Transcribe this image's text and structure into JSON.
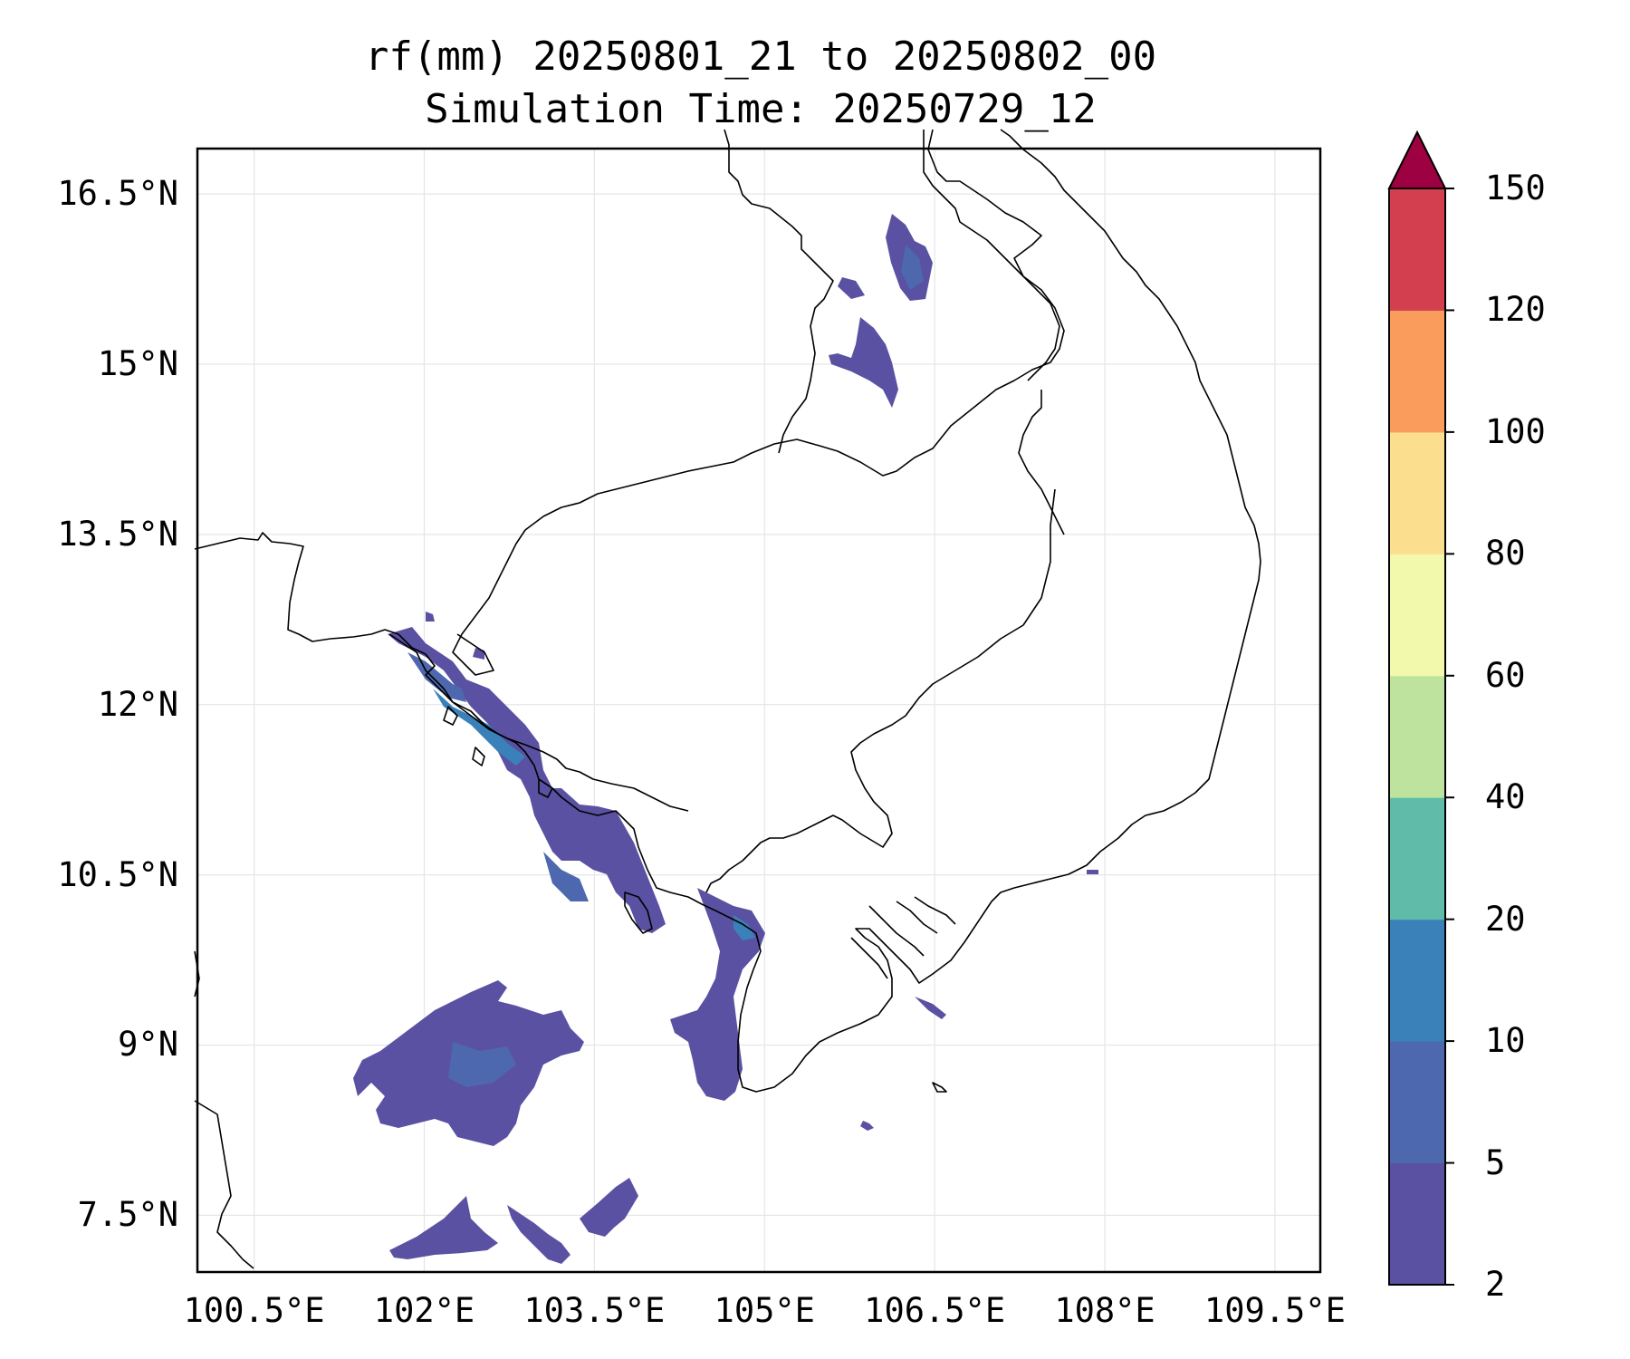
{
  "title": {
    "line1": "rf(mm) 20250801_21 to 20250802_00",
    "line2": "Simulation Time: 20250729_12"
  },
  "map": {
    "lon_range": [
      100.0,
      109.9
    ],
    "lat_range": [
      7.0,
      16.9
    ],
    "lat_ticks": [
      {
        "value": 16.5,
        "label": "16.5°N"
      },
      {
        "value": 15.0,
        "label": "15°N"
      },
      {
        "value": 13.5,
        "label": "13.5°N"
      },
      {
        "value": 12.0,
        "label": "12°N"
      },
      {
        "value": 10.5,
        "label": "10.5°N"
      },
      {
        "value": 9.0,
        "label": "9°N"
      },
      {
        "value": 7.5,
        "label": "7.5°N"
      }
    ],
    "lon_ticks": [
      {
        "value": 100.5,
        "label": "100.5°E"
      },
      {
        "value": 102.0,
        "label": "102°E"
      },
      {
        "value": 103.5,
        "label": "103.5°E"
      },
      {
        "value": 105.0,
        "label": "105°E"
      },
      {
        "value": 106.5,
        "label": "106.5°E"
      },
      {
        "value": 108.0,
        "label": "108°E"
      },
      {
        "value": 109.5,
        "label": "109.5°E"
      }
    ],
    "grid": true
  },
  "colorbar": {
    "levels": [
      2,
      5,
      10,
      20,
      40,
      60,
      80,
      100,
      120,
      150
    ],
    "labels": [
      "2",
      "5",
      "10",
      "20",
      "40",
      "60",
      "80",
      "100",
      "120",
      "150"
    ],
    "colors": [
      "#5a51a2",
      "#4d68ae",
      "#3a81ba",
      "#60bca8",
      "#bde39f",
      "#f2f9ad",
      "#fbdf8e",
      "#f99c5c",
      "#d33f4f"
    ],
    "extend_color": "#9e0142",
    "extend": "max"
  }
}
